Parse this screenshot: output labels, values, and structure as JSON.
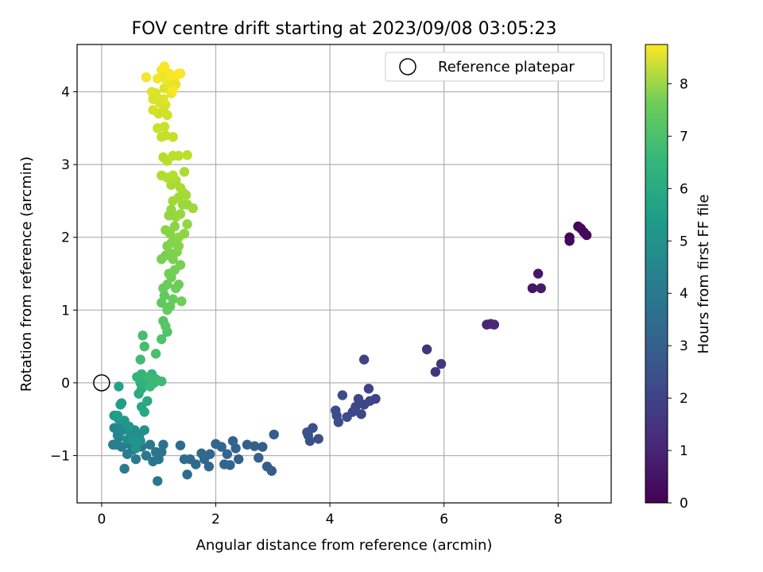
{
  "chart_data": {
    "type": "scatter",
    "title": "FOV centre drift starting at 2023/09/08 03:05:23",
    "xlabel": "Angular distance from reference (arcmin)",
    "ylabel": "Rotation from reference (arcmin)",
    "xlim": [
      -0.43,
      8.93
    ],
    "ylim": [
      -1.65,
      4.65
    ],
    "xticks": [
      0,
      2,
      4,
      6,
      8
    ],
    "yticks": [
      -1,
      0,
      1,
      2,
      3,
      4
    ],
    "grid": true,
    "legend": {
      "placement": "top-right",
      "entries": [
        "Reference platepar"
      ]
    },
    "reference_point": {
      "x": 0,
      "y": 0,
      "marker": "open-circle"
    },
    "colorbar": {
      "label": "Hours from first FF file",
      "colormap": "viridis",
      "range": [
        0,
        8.75
      ],
      "ticks": [
        0,
        1,
        2,
        3,
        4,
        5,
        6,
        7,
        8
      ]
    },
    "points": [
      [
        8.2,
        1.95,
        0.1
      ],
      [
        8.2,
        2.0,
        0.12
      ],
      [
        8.35,
        2.15,
        0.15
      ],
      [
        8.4,
        2.12,
        0.17
      ],
      [
        8.45,
        2.07,
        0.2
      ],
      [
        8.5,
        2.03,
        0.22
      ],
      [
        7.55,
        1.3,
        0.5
      ],
      [
        7.65,
        1.5,
        0.55
      ],
      [
        7.7,
        1.3,
        0.6
      ],
      [
        6.75,
        0.8,
        0.9
      ],
      [
        6.82,
        0.81,
        0.95
      ],
      [
        6.88,
        0.8,
        1.0
      ],
      [
        5.7,
        0.46,
        1.3
      ],
      [
        5.85,
        0.15,
        1.35
      ],
      [
        5.95,
        0.26,
        1.4
      ],
      [
        4.6,
        0.32,
        1.7
      ],
      [
        4.68,
        -0.08,
        1.75
      ],
      [
        4.8,
        -0.22,
        1.8
      ],
      [
        4.7,
        -0.25,
        1.82
      ],
      [
        4.6,
        -0.3,
        1.85
      ],
      [
        4.5,
        -0.22,
        1.88
      ],
      [
        4.45,
        -0.33,
        1.9
      ],
      [
        4.55,
        -0.43,
        1.92
      ],
      [
        4.4,
        -0.4,
        1.95
      ],
      [
        4.3,
        -0.47,
        1.97
      ],
      [
        4.22,
        -0.17,
        2.0
      ],
      [
        4.12,
        -0.45,
        2.02
      ],
      [
        4.1,
        -0.38,
        2.05
      ],
      [
        4.15,
        -0.54,
        2.08
      ],
      [
        3.8,
        -0.77,
        2.12
      ],
      [
        3.7,
        -0.62,
        2.15
      ],
      [
        3.65,
        -0.8,
        2.18
      ],
      [
        3.6,
        -0.68,
        2.2
      ],
      [
        3.62,
        -0.72,
        2.22
      ],
      [
        3.02,
        -0.71,
        2.5
      ],
      [
        2.98,
        -1.21,
        2.55
      ],
      [
        2.9,
        -1.15,
        2.58
      ],
      [
        2.82,
        -0.88,
        2.6
      ],
      [
        2.75,
        -1.03,
        2.62
      ],
      [
        2.68,
        -0.87,
        2.65
      ],
      [
        2.55,
        -0.85,
        2.68
      ],
      [
        2.4,
        -1.05,
        2.7
      ],
      [
        2.3,
        -0.8,
        2.72
      ],
      [
        2.25,
        -1.13,
        2.75
      ],
      [
        2.15,
        -1.12,
        2.78
      ],
      [
        2.1,
        -0.88,
        2.8
      ],
      [
        2.35,
        -0.9,
        2.82
      ],
      [
        2.2,
        -0.98,
        2.84
      ],
      [
        2.0,
        -0.84,
        2.86
      ],
      [
        1.9,
        -0.98,
        2.88
      ],
      [
        1.88,
        -1.15,
        2.9
      ],
      [
        1.8,
        -1.05,
        2.92
      ],
      [
        1.75,
        -0.97,
        2.94
      ],
      [
        1.65,
        -1.12,
        2.96
      ],
      [
        1.55,
        -1.05,
        2.98
      ],
      [
        1.5,
        -1.26,
        3.0
      ],
      [
        1.45,
        -1.05,
        3.02
      ],
      [
        1.38,
        -0.86,
        3.05
      ],
      [
        1.08,
        -0.85,
        3.3
      ],
      [
        1.05,
        -0.95,
        3.35
      ],
      [
        1.0,
        -1.05,
        3.38
      ],
      [
        0.98,
        -1.35,
        3.4
      ],
      [
        0.95,
        -0.95,
        3.42
      ],
      [
        0.9,
        -1.08,
        3.45
      ],
      [
        0.85,
        -0.85,
        3.48
      ],
      [
        0.78,
        -1.0,
        3.5
      ],
      [
        0.7,
        -0.88,
        3.52
      ],
      [
        0.65,
        -0.85,
        3.55
      ],
      [
        0.6,
        -1.05,
        3.58
      ],
      [
        0.55,
        -0.92,
        3.6
      ],
      [
        0.5,
        -0.85,
        3.62
      ],
      [
        0.45,
        -0.98,
        3.65
      ],
      [
        0.4,
        -1.18,
        3.68
      ],
      [
        0.35,
        -0.88,
        3.7
      ],
      [
        0.3,
        -0.75,
        3.72
      ],
      [
        0.25,
        -0.85,
        3.75
      ],
      [
        0.2,
        -0.85,
        3.78
      ],
      [
        0.22,
        -0.62,
        4.0
      ],
      [
        0.28,
        -0.72,
        4.05
      ],
      [
        0.32,
        -0.6,
        4.1
      ],
      [
        0.38,
        -0.65,
        4.15
      ],
      [
        0.45,
        -0.78,
        4.2
      ],
      [
        0.52,
        -0.7,
        4.25
      ],
      [
        0.58,
        -0.65,
        4.3
      ],
      [
        0.66,
        -0.72,
        4.35
      ],
      [
        0.75,
        -0.65,
        4.4
      ],
      [
        0.68,
        -0.8,
        4.45
      ],
      [
        0.6,
        -0.9,
        4.5
      ],
      [
        0.55,
        -0.78,
        4.55
      ],
      [
        0.48,
        -0.6,
        4.6
      ],
      [
        0.4,
        -0.52,
        4.65
      ],
      [
        0.3,
        -0.5,
        4.7
      ],
      [
        0.22,
        -0.45,
        4.75
      ],
      [
        0.35,
        -0.28,
        4.8
      ],
      [
        0.33,
        -0.3,
        4.85
      ],
      [
        0.28,
        -0.45,
        4.9
      ],
      [
        0.3,
        -0.05,
        5.05
      ],
      [
        0.7,
        -0.33,
        5.2
      ],
      [
        0.75,
        -0.4,
        5.25
      ],
      [
        0.8,
        -0.25,
        5.3
      ],
      [
        0.65,
        -0.15,
        5.4
      ],
      [
        0.7,
        -0.08,
        5.45
      ],
      [
        0.68,
        0.0,
        5.5
      ],
      [
        0.72,
        0.05,
        5.55
      ],
      [
        0.75,
        -0.02,
        5.6
      ],
      [
        0.78,
        0.02,
        5.65
      ],
      [
        0.62,
        0.08,
        5.7
      ],
      [
        0.7,
        0.12,
        5.75
      ],
      [
        0.88,
        0.12,
        5.8
      ],
      [
        0.92,
        0.0,
        5.85
      ],
      [
        0.85,
        -0.05,
        5.9
      ],
      [
        0.82,
        0.08,
        5.92
      ],
      [
        0.95,
        0.05,
        5.95
      ],
      [
        1.05,
        0.02,
        5.98
      ],
      [
        0.68,
        0.32,
        6.05
      ],
      [
        0.75,
        0.5,
        6.1
      ],
      [
        0.72,
        0.65,
        6.15
      ],
      [
        0.95,
        0.4,
        6.2
      ],
      [
        1.05,
        0.6,
        6.3
      ],
      [
        1.15,
        0.7,
        6.35
      ],
      [
        1.08,
        0.85,
        6.4
      ],
      [
        1.12,
        0.78,
        6.45
      ],
      [
        1.05,
        1.1,
        6.55
      ],
      [
        1.1,
        1.2,
        6.6
      ],
      [
        1.15,
        1.0,
        6.62
      ],
      [
        1.2,
        1.05,
        6.65
      ],
      [
        1.25,
        1.15,
        6.68
      ],
      [
        1.08,
        1.3,
        6.7
      ],
      [
        1.15,
        1.35,
        6.72
      ],
      [
        1.3,
        1.3,
        6.75
      ],
      [
        1.35,
        1.35,
        6.78
      ],
      [
        1.4,
        1.12,
        6.8
      ],
      [
        1.22,
        1.45,
        6.82
      ],
      [
        1.18,
        1.5,
        6.85
      ],
      [
        1.28,
        1.55,
        6.88
      ],
      [
        1.38,
        1.62,
        6.9
      ],
      [
        1.05,
        1.7,
        6.92
      ],
      [
        1.12,
        1.75,
        6.95
      ],
      [
        1.2,
        1.78,
        6.98
      ],
      [
        1.25,
        1.7,
        7.0
      ],
      [
        1.32,
        1.8,
        7.02
      ],
      [
        1.15,
        1.88,
        7.05
      ],
      [
        1.22,
        1.92,
        7.08
      ],
      [
        1.3,
        1.95,
        7.1
      ],
      [
        1.35,
        1.88,
        7.12
      ],
      [
        1.12,
        2.1,
        7.15
      ],
      [
        1.2,
        2.05,
        7.18
      ],
      [
        1.28,
        2.15,
        7.2
      ],
      [
        1.35,
        2.0,
        7.22
      ],
      [
        1.45,
        2.05,
        7.25
      ],
      [
        1.5,
        2.18,
        7.28
      ],
      [
        1.18,
        2.3,
        7.3
      ],
      [
        1.22,
        2.38,
        7.32
      ],
      [
        1.3,
        2.28,
        7.35
      ],
      [
        1.38,
        2.32,
        7.38
      ],
      [
        1.42,
        2.45,
        7.4
      ],
      [
        1.5,
        2.45,
        7.42
      ],
      [
        1.6,
        2.4,
        7.45
      ],
      [
        1.25,
        2.5,
        7.48
      ],
      [
        1.35,
        2.55,
        7.5
      ],
      [
        1.42,
        2.62,
        7.52
      ],
      [
        1.48,
        2.58,
        7.55
      ],
      [
        1.22,
        2.72,
        7.58
      ],
      [
        1.3,
        2.78,
        7.6
      ],
      [
        1.38,
        2.68,
        7.62
      ],
      [
        1.45,
        2.9,
        7.65
      ],
      [
        1.05,
        2.85,
        7.7
      ],
      [
        1.15,
        2.82,
        7.72
      ],
      [
        1.25,
        2.85,
        7.75
      ],
      [
        1.08,
        3.1,
        7.8
      ],
      [
        1.15,
        3.05,
        7.82
      ],
      [
        1.25,
        3.12,
        7.85
      ],
      [
        1.35,
        3.12,
        7.88
      ],
      [
        1.5,
        3.13,
        7.9
      ],
      [
        1.05,
        3.38,
        7.95
      ],
      [
        1.12,
        3.4,
        7.98
      ],
      [
        1.25,
        3.38,
        8.0
      ],
      [
        0.98,
        3.5,
        8.05
      ],
      [
        1.1,
        3.52,
        8.08
      ],
      [
        1.0,
        3.7,
        8.1
      ],
      [
        1.08,
        3.75,
        8.12
      ],
      [
        1.15,
        3.68,
        8.15
      ],
      [
        0.9,
        3.75,
        8.18
      ],
      [
        1.02,
        3.85,
        8.2
      ],
      [
        1.12,
        3.82,
        8.22
      ],
      [
        0.9,
        3.9,
        8.25
      ],
      [
        0.95,
        3.98,
        8.28
      ],
      [
        1.08,
        3.9,
        8.3
      ],
      [
        0.88,
        4.0,
        8.32
      ],
      [
        1.1,
        4.05,
        8.35
      ],
      [
        1.2,
        4.05,
        8.38
      ],
      [
        1.25,
        4.1,
        8.4
      ],
      [
        1.3,
        4.1,
        8.42
      ],
      [
        1.22,
        3.98,
        8.45
      ],
      [
        1.15,
        4.15,
        8.48
      ],
      [
        1.05,
        4.2,
        8.5
      ],
      [
        1.18,
        4.25,
        8.52
      ],
      [
        1.3,
        4.22,
        8.55
      ],
      [
        1.38,
        4.25,
        8.57
      ],
      [
        0.98,
        4.18,
        8.6
      ],
      [
        0.78,
        4.2,
        8.62
      ],
      [
        1.05,
        4.3,
        8.64
      ],
      [
        1.1,
        4.35,
        8.66
      ],
      [
        1.2,
        4.22,
        8.68
      ],
      [
        1.25,
        4.02,
        8.7
      ],
      [
        1.35,
        4.25,
        8.72
      ]
    ]
  }
}
